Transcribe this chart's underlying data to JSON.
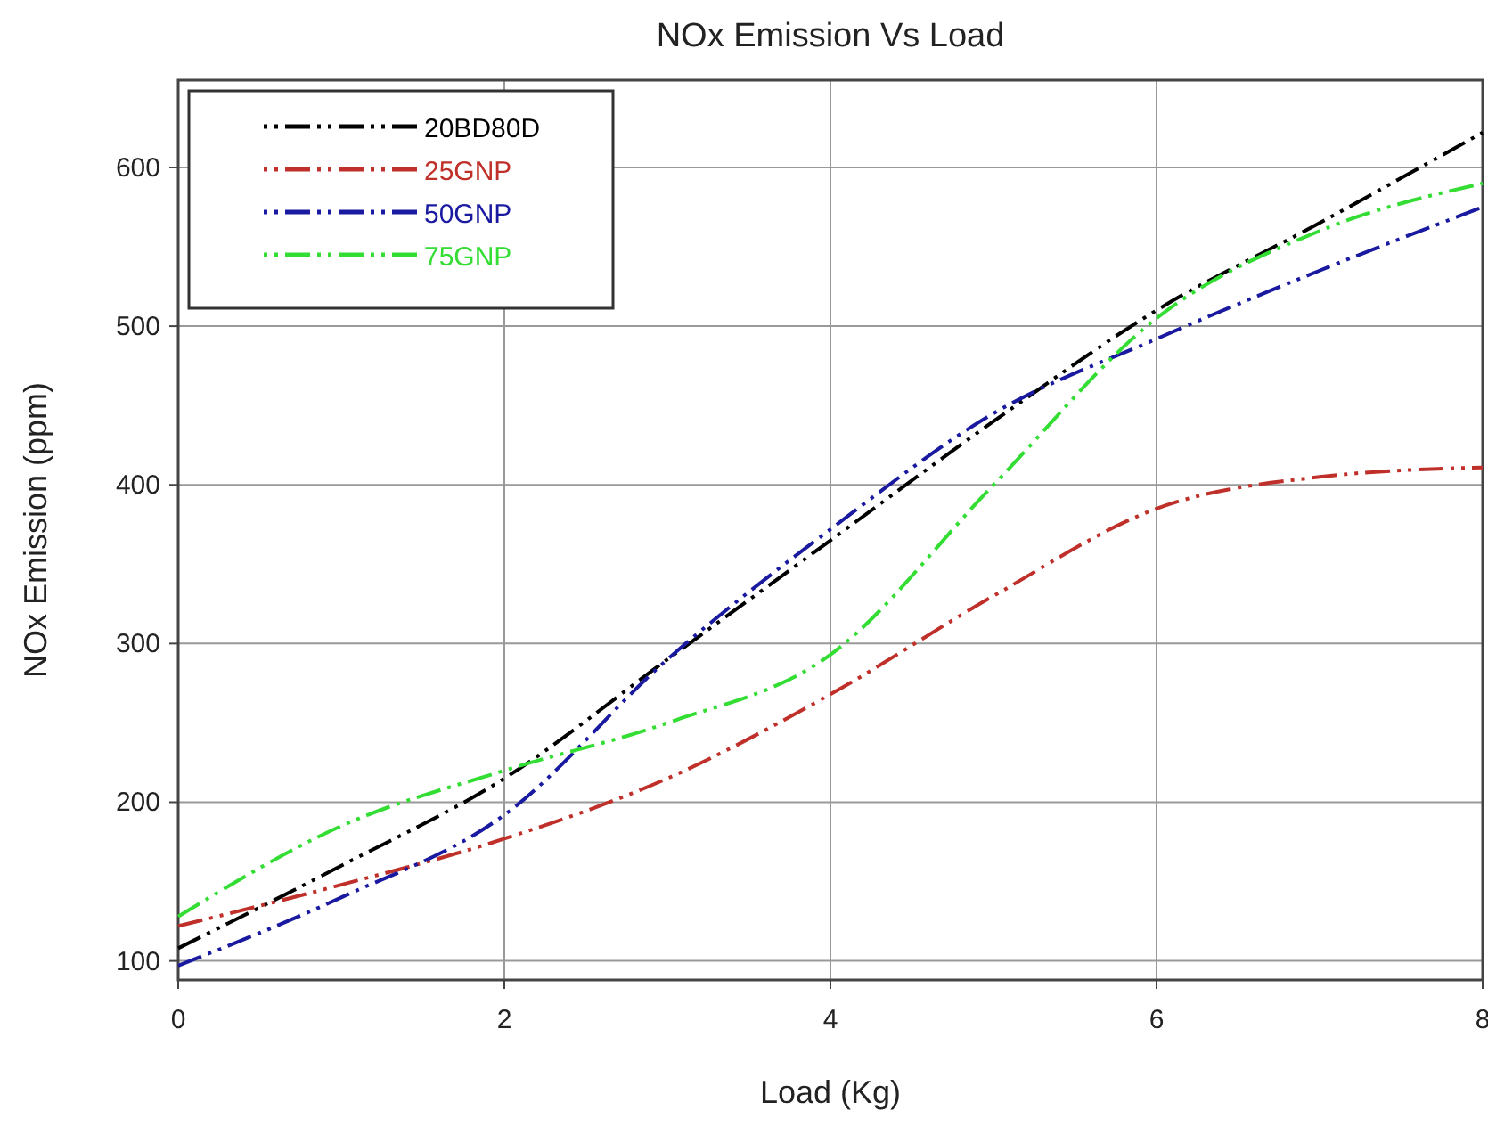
{
  "chart_data": {
    "type": "line",
    "title": "NOx Emission Vs Load",
    "xlabel": "Load (Kg)",
    "ylabel": "NOx Emission (ppm)",
    "x": [
      0,
      1,
      2,
      3,
      4,
      5,
      6,
      7,
      8
    ],
    "series": [
      {
        "name": "20BD80D",
        "color": "#000000",
        "values": [
          108,
          160,
          215,
          290,
          365,
          440,
          510,
          565,
          622
        ]
      },
      {
        "name": "25GNP",
        "color": "#c0302a",
        "values": [
          122,
          148,
          177,
          215,
          268,
          330,
          385,
          405,
          411
        ]
      },
      {
        "name": "50GNP",
        "color": "#1a1aa0",
        "values": [
          97,
          140,
          192,
          290,
          372,
          445,
          492,
          535,
          575
        ]
      },
      {
        "name": "75GNP",
        "color": "#33dd33",
        "values": [
          128,
          185,
          220,
          250,
          293,
          400,
          505,
          560,
          590
        ]
      }
    ],
    "xlim": [
      0,
      8
    ],
    "xticks": [
      0,
      2,
      4,
      6,
      8
    ],
    "ylim": [
      88,
      655
    ],
    "yticks": [
      100,
      200,
      300,
      400,
      500,
      600
    ],
    "grid": true,
    "legend": "top left",
    "line_style": "dashed",
    "marker": "none"
  }
}
